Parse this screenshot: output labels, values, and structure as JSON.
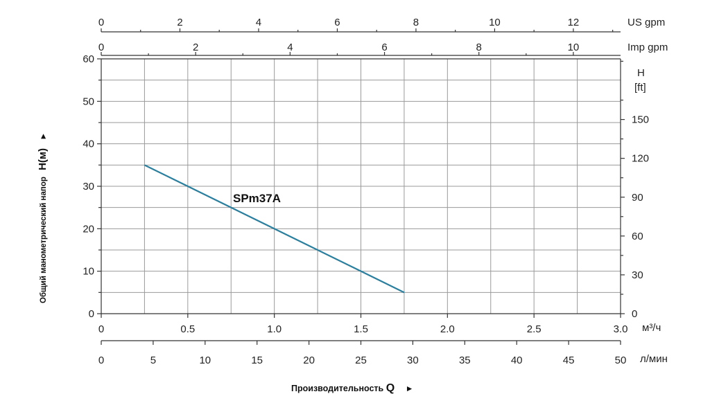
{
  "chart_data": {
    "type": "line",
    "series": [
      {
        "name": "SPm37A",
        "x": [
          0.25,
          1.75
        ],
        "y": [
          35,
          5
        ]
      }
    ],
    "xlim": [
      0,
      3.0
    ],
    "ylim": [
      0,
      60
    ],
    "x_ticks": [
      "0",
      "0.5",
      "1.0",
      "1.5",
      "2.0",
      "2.5",
      "3.0"
    ],
    "y_ticks": [
      "0",
      "10",
      "20",
      "30",
      "40",
      "50",
      "60"
    ],
    "x_unit": "м³/ч",
    "xlabel": "Производительность",
    "xlabel_symbol": "Q",
    "xlabel_arrow": "►",
    "ylabel": "Общий манометрический напор",
    "ylabel_symbol": "H(м)",
    "ylabel_arrow": "►",
    "lpm_axis": {
      "ticks": [
        "0",
        "5",
        "10",
        "15",
        "20",
        "25",
        "30",
        "35",
        "40",
        "45",
        "50"
      ],
      "max": 50,
      "unit": "л/мин"
    },
    "us_gpm_axis": {
      "ticks": [
        "0",
        "2",
        "4",
        "6",
        "8",
        "10",
        "12"
      ],
      "step": 2,
      "max": 13.2,
      "unit": "US gpm"
    },
    "imp_gpm_axis": {
      "ticks": [
        "0",
        "2",
        "4",
        "6",
        "8",
        "10"
      ],
      "step": 2,
      "max": 11.0,
      "unit": "Imp gpm"
    },
    "ft_axis": {
      "ticks": [
        "0",
        "30",
        "60",
        "90",
        "120",
        "150"
      ],
      "step": 30,
      "max": 196.85,
      "label_line1": "H",
      "label_line2": "[ft]"
    },
    "line_color": "#2b7f9e",
    "grid": true
  }
}
